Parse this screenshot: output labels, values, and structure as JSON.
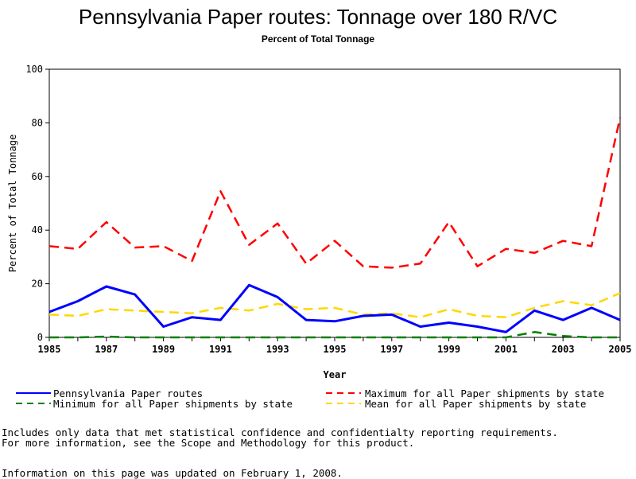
{
  "title": "Pennsylvania Paper routes: Tonnage over 180 R/VC",
  "subtitle": "Percent of Total Tonnage",
  "notes": {
    "line1": "Includes only data that met statistical confidence and confidentialty reporting requirements.",
    "line2": "For more information, see the Scope and Methodology for this product.",
    "updated": "Information on this page was updated on February 1, 2008."
  },
  "legend": {
    "pa": "Pennsylvania Paper routes",
    "max": "Maximum for all Paper shipments by state",
    "min": "Minimum for all Paper shipments by state",
    "mean": "Mean for all Paper shipments by state"
  },
  "colors": {
    "pa": "#0000ff",
    "max": "#ff0000",
    "min": "#008000",
    "mean": "#ffd700"
  },
  "chart_data": {
    "type": "line",
    "title": "Pennsylvania Paper routes: Tonnage over 180 R/VC",
    "subtitle": "Percent of Total Tonnage",
    "xlabel": "Year",
    "ylabel": "Percent of Total Tonnage",
    "xlim": [
      1985,
      2005
    ],
    "ylim": [
      0,
      100
    ],
    "x_ticks": [
      "1985",
      "1987",
      "1989",
      "1991",
      "1993",
      "1995",
      "1997",
      "1999",
      "2001",
      "2003",
      "2005"
    ],
    "y_ticks": [
      "0",
      "20",
      "40",
      "60",
      "80",
      "100"
    ],
    "x": [
      1985,
      1986,
      1987,
      1988,
      1989,
      1990,
      1991,
      1992,
      1993,
      1994,
      1995,
      1996,
      1997,
      1998,
      1999,
      2000,
      2001,
      2002,
      2003,
      2004,
      2005
    ],
    "series": [
      {
        "name": "Pennsylvania Paper routes",
        "key": "pa",
        "style": "solid",
        "values": [
          9.5,
          13.5,
          19,
          16,
          4,
          7.5,
          6.5,
          19.5,
          15,
          6.5,
          6,
          8,
          8.5,
          4,
          5.5,
          4,
          2,
          10,
          6.5,
          11,
          6.5
        ]
      },
      {
        "name": "Maximum for all Paper shipments by state",
        "key": "max",
        "style": "dashed",
        "values": [
          34,
          33,
          43,
          33.5,
          34,
          28.5,
          54.5,
          34.5,
          42.5,
          27.5,
          36,
          26.5,
          26,
          27.5,
          43,
          26.5,
          33,
          31.5,
          36,
          34,
          82
        ]
      },
      {
        "name": "Minimum for all Paper shipments by state",
        "key": "min",
        "style": "dashed",
        "values": [
          0,
          0,
          0.3,
          0,
          0,
          0,
          0,
          0,
          0,
          0,
          0,
          0,
          0,
          0,
          0,
          0,
          0,
          2,
          0.5,
          0,
          0
        ]
      },
      {
        "name": "Mean for all Paper shipments by state",
        "key": "mean",
        "style": "dashed",
        "values": [
          8.5,
          8,
          10.5,
          10,
          9.5,
          9,
          11,
          10,
          12.5,
          10.5,
          11,
          8.5,
          9,
          7.5,
          10.5,
          8,
          7.5,
          11,
          13.5,
          12,
          16.5
        ]
      }
    ],
    "grid": false,
    "legend_position": "bottom"
  }
}
